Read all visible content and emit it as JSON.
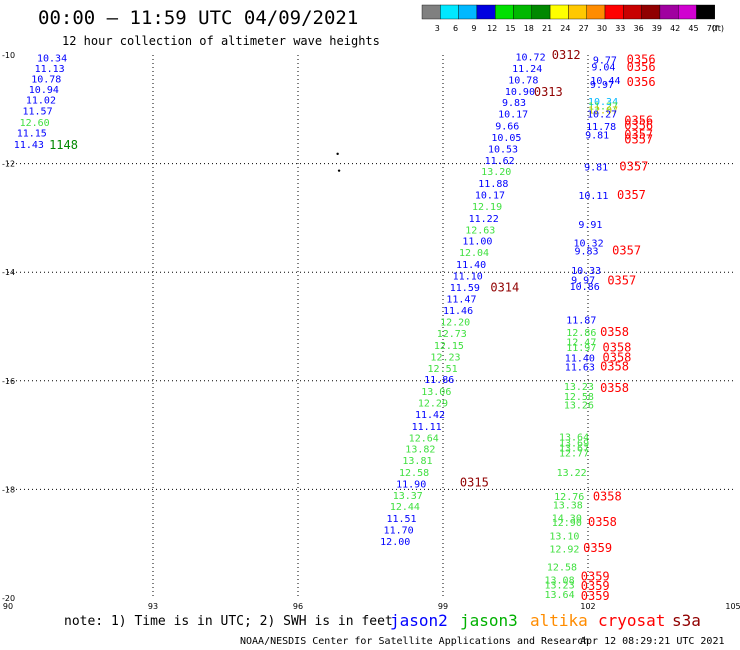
{
  "header": {
    "title": "00:00 – 11:59 UTC 04/09/2021",
    "subtitle": "12 hour collection of altimeter wave heights"
  },
  "color_scale": {
    "bins": [
      {
        "label": "3",
        "color": "#808080"
      },
      {
        "label": "6",
        "color": "#00e8ff"
      },
      {
        "label": "9",
        "color": "#00b8ff"
      },
      {
        "label": "12",
        "color": "#0000e0"
      },
      {
        "label": "15",
        "color": "#00e000"
      },
      {
        "label": "18",
        "color": "#00b800"
      },
      {
        "label": "21",
        "color": "#008800"
      },
      {
        "label": "24",
        "color": "#ffff00"
      },
      {
        "label": "27",
        "color": "#ffc800"
      },
      {
        "label": "30",
        "color": "#ff8c00"
      },
      {
        "label": "33",
        "color": "#ff0000"
      },
      {
        "label": "36",
        "color": "#c80000"
      },
      {
        "label": "39",
        "color": "#900000"
      },
      {
        "label": "42",
        "color": "#a000a0"
      },
      {
        "label": "45",
        "color": "#d000d0"
      },
      {
        "label": "70",
        "color": "#000000"
      }
    ],
    "unit": "(ft)"
  },
  "chart_data": {
    "type": "scatter",
    "xlim": [
      90,
      105
    ],
    "ylim": [
      -20,
      -10
    ],
    "xticks": [
      {
        "v": 90,
        "label": "90"
      },
      {
        "v": 93,
        "label": "93"
      },
      {
        "v": 96,
        "label": "96"
      },
      {
        "v": 99,
        "label": "99"
      },
      {
        "v": 102,
        "label": "102"
      },
      {
        "v": 105,
        "label": "105"
      }
    ],
    "yticks": [
      {
        "v": -10,
        "label": "-10"
      },
      {
        "v": -12,
        "label": "-12"
      },
      {
        "v": -14,
        "label": "-14"
      },
      {
        "v": -16,
        "label": "-16"
      },
      {
        "v": -18,
        "label": "-18"
      },
      {
        "v": -20,
        "label": "-20"
      }
    ],
    "grid": true,
    "satellites": [
      {
        "name": "jason2",
        "color": "#0000ff"
      },
      {
        "name": "jason3",
        "color": "#00b000"
      },
      {
        "name": "altika",
        "color": "#ff8c00"
      },
      {
        "name": "cryosat",
        "color": "#ff0000"
      },
      {
        "name": "s3a",
        "color": "#900000"
      }
    ],
    "pass_labels": [
      {
        "lon": 90.85,
        "lat": -11.66,
        "text": "1148",
        "color": "#008800"
      },
      {
        "lon": 101.25,
        "lat": -10.0,
        "text": "0312",
        "color": "#900000"
      },
      {
        "lon": 100.88,
        "lat": -10.68,
        "text": "0313",
        "color": "#900000"
      },
      {
        "lon": 99.98,
        "lat": -14.28,
        "text": "0314",
        "color": "#900000"
      },
      {
        "lon": 99.35,
        "lat": -17.87,
        "text": "0315",
        "color": "#900000"
      },
      {
        "lon": 102.8,
        "lat": -10.08,
        "text": "0356",
        "color": "#ff0000"
      },
      {
        "lon": 102.8,
        "lat": -10.22,
        "text": "0356",
        "color": "#ff0000"
      },
      {
        "lon": 102.8,
        "lat": -10.5,
        "text": "0356",
        "color": "#ff0000"
      },
      {
        "lon": 102.75,
        "lat": -11.21,
        "text": "0356",
        "color": "#ff0000"
      },
      {
        "lon": 102.75,
        "lat": -11.3,
        "text": "0356",
        "color": "#ff0000"
      },
      {
        "lon": 102.75,
        "lat": -11.46,
        "text": "0357",
        "color": "#ff0000"
      },
      {
        "lon": 102.75,
        "lat": -11.56,
        "text": "0357",
        "color": "#ff0000"
      },
      {
        "lon": 102.65,
        "lat": -12.05,
        "text": "0357",
        "color": "#ff0000"
      },
      {
        "lon": 102.6,
        "lat": -12.58,
        "text": "0357",
        "color": "#ff0000"
      },
      {
        "lon": 102.5,
        "lat": -13.6,
        "text": "0357",
        "color": "#ff0000"
      },
      {
        "lon": 102.4,
        "lat": -14.15,
        "text": "0357",
        "color": "#ff0000"
      },
      {
        "lon": 102.25,
        "lat": -15.1,
        "text": "0358",
        "color": "#ff0000"
      },
      {
        "lon": 102.3,
        "lat": -15.39,
        "text": "0358",
        "color": "#ff0000"
      },
      {
        "lon": 102.3,
        "lat": -15.57,
        "text": "0358",
        "color": "#ff0000"
      },
      {
        "lon": 102.25,
        "lat": -15.74,
        "text": "0358",
        "color": "#ff0000"
      },
      {
        "lon": 102.25,
        "lat": -16.13,
        "text": "0358",
        "color": "#ff0000"
      },
      {
        "lon": 102.1,
        "lat": -18.13,
        "text": "0358",
        "color": "#ff0000"
      },
      {
        "lon": 102.0,
        "lat": -18.6,
        "text": "0358",
        "color": "#ff0000"
      },
      {
        "lon": 101.9,
        "lat": -19.08,
        "text": "0359",
        "color": "#ff0000"
      },
      {
        "lon": 101.85,
        "lat": -19.6,
        "text": "0359",
        "color": "#ff0000"
      },
      {
        "lon": 101.85,
        "lat": -19.78,
        "text": "0359",
        "color": "#ff0000"
      },
      {
        "lon": 101.85,
        "lat": -19.96,
        "text": "0359",
        "color": "#ff0000"
      }
    ],
    "points": [
      {
        "lon": 90.6,
        "lat": -10.05,
        "text": "10.34",
        "color": "#0000ff"
      },
      {
        "lon": 90.55,
        "lat": -10.24,
        "text": "11.13",
        "color": "#0000ff"
      },
      {
        "lon": 90.48,
        "lat": -10.43,
        "text": "10.78",
        "color": "#0000ff"
      },
      {
        "lon": 90.43,
        "lat": -10.63,
        "text": "10.94",
        "color": "#0000ff"
      },
      {
        "lon": 90.37,
        "lat": -10.82,
        "text": "11.02",
        "color": "#0000ff"
      },
      {
        "lon": 90.3,
        "lat": -11.02,
        "text": "11.57",
        "color": "#0000ff"
      },
      {
        "lon": 90.24,
        "lat": -11.23,
        "text": "12.60",
        "color": "#40e040"
      },
      {
        "lon": 90.18,
        "lat": -11.43,
        "text": "11.15",
        "color": "#0000ff"
      },
      {
        "lon": 90.12,
        "lat": -11.64,
        "text": "11.43",
        "color": "#0000ff"
      },
      {
        "lon": 100.5,
        "lat": -10.03,
        "text": "10.72",
        "color": "#0000ff"
      },
      {
        "lon": 100.43,
        "lat": -10.24,
        "text": "11.24",
        "color": "#0000ff"
      },
      {
        "lon": 100.35,
        "lat": -10.45,
        "text": "10.78",
        "color": "#0000ff"
      },
      {
        "lon": 100.28,
        "lat": -10.66,
        "text": "10.90",
        "color": "#0000ff"
      },
      {
        "lon": 100.22,
        "lat": -10.87,
        "text": "9.83",
        "color": "#0000ff"
      },
      {
        "lon": 100.14,
        "lat": -11.08,
        "text": "10.17",
        "color": "#0000ff"
      },
      {
        "lon": 100.08,
        "lat": -11.3,
        "text": "9.66",
        "color": "#0000ff"
      },
      {
        "lon": 100.0,
        "lat": -11.51,
        "text": "10.05",
        "color": "#0000ff"
      },
      {
        "lon": 99.93,
        "lat": -11.72,
        "text": "10.53",
        "color": "#0000ff"
      },
      {
        "lon": 99.86,
        "lat": -11.93,
        "text": "11.62",
        "color": "#0000ff"
      },
      {
        "lon": 99.79,
        "lat": -12.14,
        "text": "13.20",
        "color": "#40e040"
      },
      {
        "lon": 99.73,
        "lat": -12.36,
        "text": "11.88",
        "color": "#0000ff"
      },
      {
        "lon": 99.66,
        "lat": -12.57,
        "text": "10.17",
        "color": "#0000ff"
      },
      {
        "lon": 99.6,
        "lat": -12.78,
        "text": "12.19",
        "color": "#40e040"
      },
      {
        "lon": 99.53,
        "lat": -13.0,
        "text": "11.22",
        "color": "#0000ff"
      },
      {
        "lon": 99.46,
        "lat": -13.21,
        "text": "12.63",
        "color": "#40e040"
      },
      {
        "lon": 99.4,
        "lat": -13.42,
        "text": "11.00",
        "color": "#0000ff"
      },
      {
        "lon": 99.33,
        "lat": -13.63,
        "text": "12.04",
        "color": "#40e040"
      },
      {
        "lon": 99.27,
        "lat": -13.85,
        "text": "11.40",
        "color": "#0000ff"
      },
      {
        "lon": 99.2,
        "lat": -14.06,
        "text": "11.10",
        "color": "#0000ff"
      },
      {
        "lon": 99.14,
        "lat": -14.27,
        "text": "11.59",
        "color": "#0000ff"
      },
      {
        "lon": 99.07,
        "lat": -14.48,
        "text": "11.47",
        "color": "#0000ff"
      },
      {
        "lon": 99.0,
        "lat": -14.7,
        "text": "11.46",
        "color": "#0000ff"
      },
      {
        "lon": 98.94,
        "lat": -14.91,
        "text": "12.20",
        "color": "#40e040"
      },
      {
        "lon": 98.87,
        "lat": -15.12,
        "text": "12.73",
        "color": "#40e040"
      },
      {
        "lon": 98.81,
        "lat": -15.34,
        "text": "12.15",
        "color": "#40e040"
      },
      {
        "lon": 98.74,
        "lat": -15.55,
        "text": "12.23",
        "color": "#40e040"
      },
      {
        "lon": 98.68,
        "lat": -15.76,
        "text": "12.51",
        "color": "#40e040"
      },
      {
        "lon": 98.61,
        "lat": -15.97,
        "text": "11.86",
        "color": "#0000ff"
      },
      {
        "lon": 98.55,
        "lat": -16.19,
        "text": "13.06",
        "color": "#40e040"
      },
      {
        "lon": 98.48,
        "lat": -16.4,
        "text": "12.29",
        "color": "#40e040"
      },
      {
        "lon": 98.42,
        "lat": -16.61,
        "text": "11.42",
        "color": "#0000ff"
      },
      {
        "lon": 98.35,
        "lat": -16.83,
        "text": "11.11",
        "color": "#0000ff"
      },
      {
        "lon": 98.29,
        "lat": -17.04,
        "text": "12.64",
        "color": "#40e040"
      },
      {
        "lon": 98.22,
        "lat": -17.25,
        "text": "13.82",
        "color": "#40e040"
      },
      {
        "lon": 98.16,
        "lat": -17.46,
        "text": "13.81",
        "color": "#40e040"
      },
      {
        "lon": 98.09,
        "lat": -17.68,
        "text": "12.58",
        "color": "#40e040"
      },
      {
        "lon": 98.03,
        "lat": -17.89,
        "text": "11.90",
        "color": "#0000ff"
      },
      {
        "lon": 97.96,
        "lat": -18.1,
        "text": "13.37",
        "color": "#40e040"
      },
      {
        "lon": 97.9,
        "lat": -18.31,
        "text": "12.44",
        "color": "#40e040"
      },
      {
        "lon": 97.83,
        "lat": -18.53,
        "text": "11.51",
        "color": "#0000ff"
      },
      {
        "lon": 97.77,
        "lat": -18.74,
        "text": "11.70",
        "color": "#0000ff"
      },
      {
        "lon": 97.7,
        "lat": -18.95,
        "text": "12.00",
        "color": "#0000ff"
      },
      {
        "lon": 102.1,
        "lat": -10.08,
        "text": "9.77",
        "color": "#0000ff"
      },
      {
        "lon": 102.07,
        "lat": -10.21,
        "text": "9.04",
        "color": "#0000ff"
      },
      {
        "lon": 102.05,
        "lat": -10.46,
        "text": "10.44",
        "color": "#0000ff"
      },
      {
        "lon": 102.04,
        "lat": -10.53,
        "text": "9.97",
        "color": "#0000ff"
      },
      {
        "lon": 102.0,
        "lat": -10.85,
        "text": "10.34",
        "color": "#00b8ff"
      },
      {
        "lon": 102.0,
        "lat": -10.93,
        "text": "11.27",
        "color": "#40e040"
      },
      {
        "lon": 102.0,
        "lat": -11.0,
        "text": "12.07",
        "color": "#c8c800"
      },
      {
        "lon": 101.98,
        "lat": -11.08,
        "text": "10.27",
        "color": "#0000ff"
      },
      {
        "lon": 101.96,
        "lat": -11.31,
        "text": "11.78",
        "color": "#0000ff"
      },
      {
        "lon": 101.94,
        "lat": -11.46,
        "text": "9.81",
        "color": "#0000ff"
      },
      {
        "lon": 101.92,
        "lat": -12.05,
        "text": "9.81",
        "color": "#0000ff"
      },
      {
        "lon": 101.8,
        "lat": -12.58,
        "text": "10.11",
        "color": "#0000ff"
      },
      {
        "lon": 101.8,
        "lat": -13.11,
        "text": "9.91",
        "color": "#0000ff"
      },
      {
        "lon": 101.7,
        "lat": -13.45,
        "text": "10.32",
        "color": "#0000ff"
      },
      {
        "lon": 101.72,
        "lat": -13.6,
        "text": "9.83",
        "color": "#0000ff"
      },
      {
        "lon": 101.65,
        "lat": -13.96,
        "text": "10.33",
        "color": "#0000ff"
      },
      {
        "lon": 101.65,
        "lat": -14.13,
        "text": "9.97",
        "color": "#0000ff"
      },
      {
        "lon": 101.62,
        "lat": -14.25,
        "text": "10.86",
        "color": "#0000ff"
      },
      {
        "lon": 101.55,
        "lat": -14.87,
        "text": "11.87",
        "color": "#0000ff"
      },
      {
        "lon": 101.55,
        "lat": -15.1,
        "text": "12.86",
        "color": "#40e040"
      },
      {
        "lon": 101.55,
        "lat": -15.28,
        "text": "12.47",
        "color": "#40e040"
      },
      {
        "lon": 101.55,
        "lat": -15.38,
        "text": "11.97",
        "color": "#40e040"
      },
      {
        "lon": 101.52,
        "lat": -15.57,
        "text": "11.40",
        "color": "#0000ff"
      },
      {
        "lon": 101.52,
        "lat": -15.74,
        "text": "11.63",
        "color": "#0000ff"
      },
      {
        "lon": 101.5,
        "lat": -16.1,
        "text": "13.23",
        "color": "#40e040"
      },
      {
        "lon": 101.5,
        "lat": -16.28,
        "text": "12.58",
        "color": "#40e040"
      },
      {
        "lon": 101.5,
        "lat": -16.44,
        "text": "13.26",
        "color": "#40e040"
      },
      {
        "lon": 101.4,
        "lat": -17.03,
        "text": "13.64",
        "color": "#40e040"
      },
      {
        "lon": 101.4,
        "lat": -17.14,
        "text": "13.69",
        "color": "#40e040"
      },
      {
        "lon": 101.4,
        "lat": -17.23,
        "text": "13.67",
        "color": "#40e040"
      },
      {
        "lon": 101.4,
        "lat": -17.32,
        "text": "12.77",
        "color": "#40e040"
      },
      {
        "lon": 101.35,
        "lat": -17.68,
        "text": "13.22",
        "color": "#40e040"
      },
      {
        "lon": 101.3,
        "lat": -18.12,
        "text": "12.76",
        "color": "#40e040"
      },
      {
        "lon": 101.27,
        "lat": -18.28,
        "text": "13.38",
        "color": "#40e040"
      },
      {
        "lon": 101.25,
        "lat": -18.52,
        "text": "14.30",
        "color": "#40e040"
      },
      {
        "lon": 101.25,
        "lat": -18.6,
        "text": "12.90",
        "color": "#40e040"
      },
      {
        "lon": 101.2,
        "lat": -18.85,
        "text": "13.10",
        "color": "#40e040"
      },
      {
        "lon": 101.2,
        "lat": -19.09,
        "text": "12.92",
        "color": "#40e040"
      },
      {
        "lon": 101.15,
        "lat": -19.42,
        "text": "12.58",
        "color": "#40e040"
      },
      {
        "lon": 101.1,
        "lat": -19.66,
        "text": "13.08",
        "color": "#40e040"
      },
      {
        "lon": 101.1,
        "lat": -19.75,
        "text": "13.23",
        "color": "#40e040"
      },
      {
        "lon": 101.1,
        "lat": -19.93,
        "text": "13.64",
        "color": "#40e040"
      }
    ],
    "islands": [
      {
        "lon": 96.82,
        "lat": -11.82
      },
      {
        "lon": 96.85,
        "lat": -12.13
      }
    ]
  },
  "footer": {
    "note": "note: 1) Time is in UTC; 2) SWH is in feet",
    "credit": "NOAA/NESDIS Center for Satellite Applications and Research",
    "timestamp": "Apr 12 08:29:21 UTC 2021"
  }
}
